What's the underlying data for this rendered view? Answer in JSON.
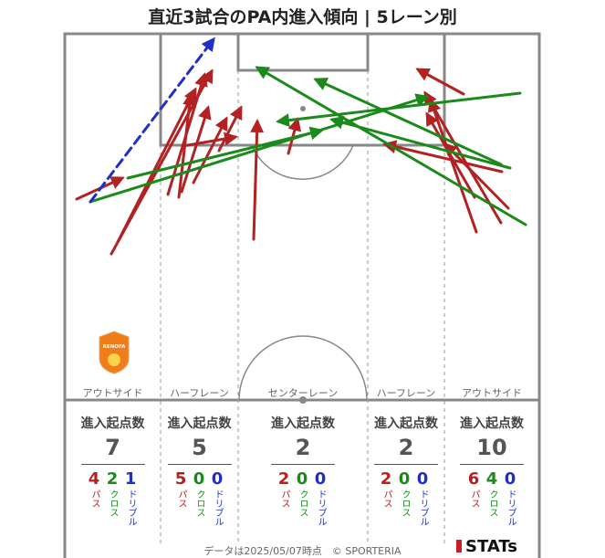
{
  "title": "直近3試合のPA内進入傾向 | 5レーン別",
  "colors": {
    "pass": "#b22222",
    "cross": "#1a8a1a",
    "dribble": "#1f2fc8",
    "pitch_line": "#888888"
  },
  "lanes": [
    {
      "name": "アウトサイド",
      "head": "進入起点数",
      "total": "7",
      "breakdown": [
        {
          "value": "4",
          "label": "パス"
        },
        {
          "value": "2",
          "label": "クロス"
        },
        {
          "value": "1",
          "label": "ドリブル"
        }
      ]
    },
    {
      "name": "ハーフレーン",
      "head": "進入起点数",
      "total": "5",
      "breakdown": [
        {
          "value": "5",
          "label": "パス"
        },
        {
          "value": "0",
          "label": "クロス"
        },
        {
          "value": "0",
          "label": "ドリブル"
        }
      ]
    },
    {
      "name": "センターレーン",
      "head": "進入起点数",
      "total": "2",
      "breakdown": [
        {
          "value": "2",
          "label": "パス"
        },
        {
          "value": "0",
          "label": "クロス"
        },
        {
          "value": "0",
          "label": "ドリブル"
        }
      ]
    },
    {
      "name": "ハーフレーン",
      "head": "進入起点数",
      "total": "2",
      "breakdown": [
        {
          "value": "2",
          "label": "パス"
        },
        {
          "value": "0",
          "label": "クロス"
        },
        {
          "value": "0",
          "label": "ドリブル"
        }
      ]
    },
    {
      "name": "アウトサイド",
      "head": "進入起点数",
      "total": "10",
      "breakdown": [
        {
          "value": "6",
          "label": "パス"
        },
        {
          "value": "4",
          "label": "クロス"
        },
        {
          "value": "0",
          "label": "ドリブル"
        }
      ]
    }
  ],
  "logo_text": "RENOFA",
  "footer": "データは2025/05/07時点　© SPORTERIA",
  "brand": "STATs",
  "chart_data": {
    "type": "scatter",
    "title": "直近3試合のPA内進入傾向 | 5レーン別",
    "series": [
      {
        "name": "パス",
        "arrows": [
          [
            [
              122,
              278
            ],
            [
              232,
              78
            ]
          ],
          [
            [
              129,
              265
            ],
            [
              214,
              98
            ]
          ],
          [
            [
              184,
              213
            ],
            [
              224,
              82
            ]
          ],
          [
            [
              199,
              210
            ],
            [
              228,
              118
            ]
          ],
          [
            [
              196,
              216
            ],
            [
              209,
              103
            ]
          ],
          [
            [
              212,
              200
            ],
            [
              248,
              130
            ]
          ],
          [
            [
              240,
              165
            ],
            [
              264,
              118
            ]
          ],
          [
            [
              200,
              160
            ],
            [
              258,
              150
            ]
          ],
          [
            [
              84,
              218
            ],
            [
              134,
              195
            ]
          ],
          [
            [
              278,
              262
            ],
            [
              282,
              133
            ]
          ],
          [
            [
              316,
              168
            ],
            [
              326,
              131
            ]
          ],
          [
            [
              549,
              244
            ],
            [
              466,
              102
            ]
          ],
          [
            [
              522,
              254
            ],
            [
              472,
              110
            ]
          ],
          [
            [
              557,
              228
            ],
            [
              488,
              158
            ]
          ],
          [
            [
              550,
              188
            ],
            [
              422,
              158
            ]
          ],
          [
            [
              508,
              103
            ],
            [
              458,
              76
            ]
          ],
          [
            [
              520,
              216
            ],
            [
              468,
              125
            ]
          ]
        ]
      },
      {
        "name": "クロス",
        "arrows": [
          [
            [
              99,
              221
            ],
            [
              468,
              106
            ]
          ],
          [
            [
              140,
              195
            ],
            [
              352,
              143
            ]
          ],
          [
            [
              570,
              102
            ],
            [
              305,
              133
            ]
          ],
          [
            [
              576,
              246
            ],
            [
              282,
              74
            ]
          ],
          [
            [
              549,
              180
            ],
            [
              346,
              87
            ]
          ],
          [
            [
              559,
              184
            ],
            [
              364,
              131
            ]
          ]
        ]
      },
      {
        "name": "ドリブル",
        "arrows": [
          [
            [
              99,
              221
            ],
            [
              234,
              43
            ]
          ]
        ]
      }
    ]
  }
}
